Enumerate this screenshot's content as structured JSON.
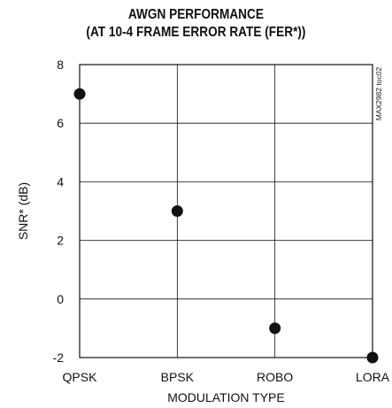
{
  "chart_data": {
    "type": "scatter",
    "title_line1": "AWGN PERFORMANCE",
    "title_line2": "(AT 10-4 FRAME ERROR RATE (FER*))",
    "xlabel": "MODULATION TYPE",
    "ylabel": "SNR* (dB)",
    "categories": [
      "QPSK",
      "BPSK",
      "ROBO",
      "LORA"
    ],
    "values": [
      7,
      3,
      -1,
      -2
    ],
    "ylim": [
      -2,
      8
    ],
    "yticks": [
      "-2",
      "0",
      "2",
      "4",
      "6",
      "8"
    ],
    "grid": true,
    "annotation": "MAX2982 toc02",
    "marker_color": "#111111"
  }
}
